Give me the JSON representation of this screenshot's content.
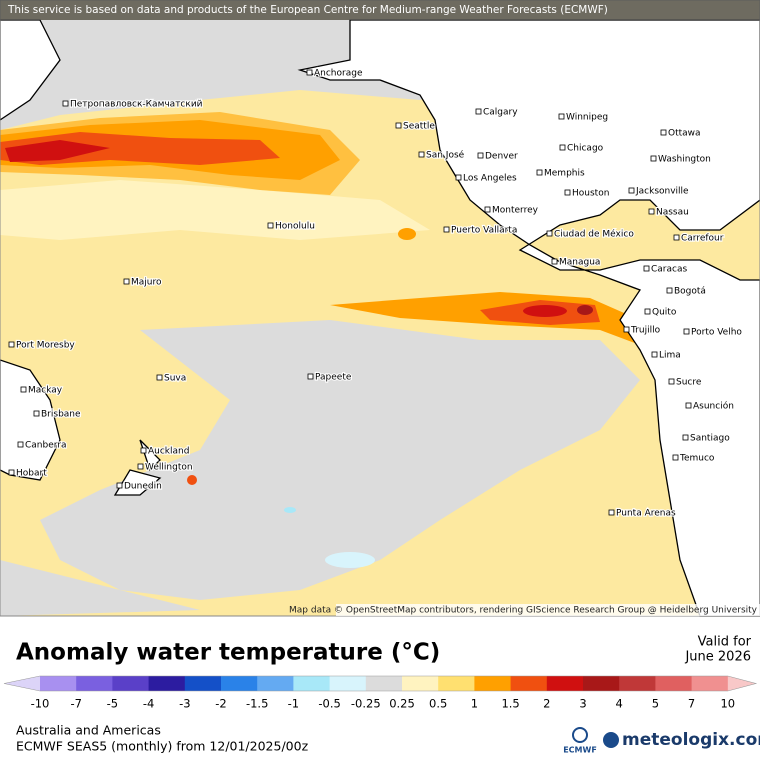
{
  "header": {
    "notice": "This service is based on data and products of the European Centre for Medium-range Weather Forecasts (ECMWF)"
  },
  "map": {
    "attribution": "Map data © OpenStreetMap contributors, rendering GIScience Research Group @ Heidelberg University",
    "cities": [
      "Anchorage",
      "Петропавловск-Камчатский",
      "Calgary",
      "Winnipeg",
      "Seattle",
      "Ottawa",
      "Chicago",
      "San José",
      "Denver",
      "Washington",
      "Memphis",
      "Los Angeles",
      "Jacksonville",
      "Houston",
      "Monterrey",
      "Nassau",
      "Honolulu",
      "Puerto Vallarta",
      "Ciudad de México",
      "Carrefour",
      "Managua",
      "Caracas",
      "Majuro",
      "Bogotá",
      "Quito",
      "Trujillo",
      "Porto Velho",
      "Port Moresby",
      "Lima",
      "Suva",
      "Papeete",
      "Sucre",
      "Mackay",
      "Asunción",
      "Brisbane",
      "Santiago",
      "Canberra",
      "Auckland",
      "Temuco",
      "Wellington",
      "Hobart",
      "Dunedin",
      "Punta Arenas"
    ]
  },
  "legend": {
    "title": "Anomaly water temperature (°C)",
    "valid_label": "Valid for",
    "valid_date": "June 2026",
    "ticks": [
      -10,
      -7,
      -5,
      -4,
      -3,
      -2,
      -1.5,
      -1,
      -0.5,
      -0.25,
      0.25,
      0.5,
      1,
      1.5,
      2,
      3,
      4,
      5,
      7,
      10
    ],
    "colors": [
      "#dcd4f8",
      "#a890f0",
      "#7a60e0",
      "#5a40c8",
      "#2c1ca0",
      "#1450c8",
      "#2a82e8",
      "#64aaf2",
      "#a8e8f8",
      "#d8f4fc",
      "#dcdcdc",
      "#fff3c0",
      "#ffe070",
      "#ffa000",
      "#f05010",
      "#d01010",
      "#a81818",
      "#c03838",
      "#e06060",
      "#f09090",
      "#f8c8c8"
    ]
  },
  "footer": {
    "region": "Australia and Americas",
    "model": "ECMWF SEAS5 (monthly) from 12/01/2025/00z",
    "ecmwf_logo": "ECMWF",
    "brand": "meteologix.com"
  }
}
